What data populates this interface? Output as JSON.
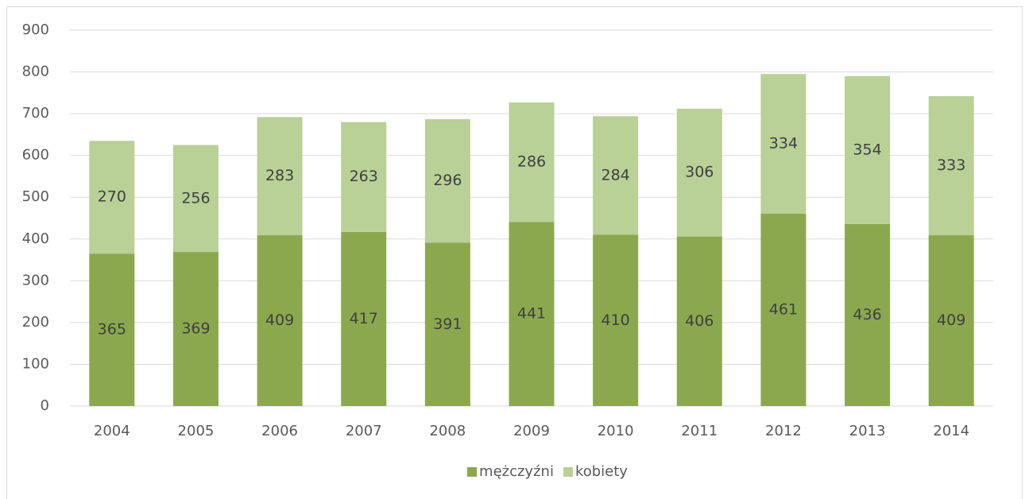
{
  "chart_data": {
    "type": "stacked_bar",
    "categories": [
      "2004",
      "2005",
      "2006",
      "2007",
      "2008",
      "2009",
      "2010",
      "2011",
      "2012",
      "2013",
      "2014"
    ],
    "series": [
      {
        "name": "mężczyźni",
        "color": "#8ba84f",
        "values": [
          365,
          369,
          409,
          417,
          391,
          441,
          410,
          406,
          461,
          436,
          409
        ]
      },
      {
        "name": "kobiety",
        "color": "#b9d097",
        "values": [
          270,
          256,
          283,
          263,
          296,
          286,
          284,
          306,
          334,
          354,
          333
        ]
      }
    ],
    "ylim": [
      0,
      900
    ],
    "yticks": [
      0,
      100,
      200,
      300,
      400,
      500,
      600,
      700,
      800,
      900
    ],
    "grid": true,
    "legend": "bottom"
  }
}
